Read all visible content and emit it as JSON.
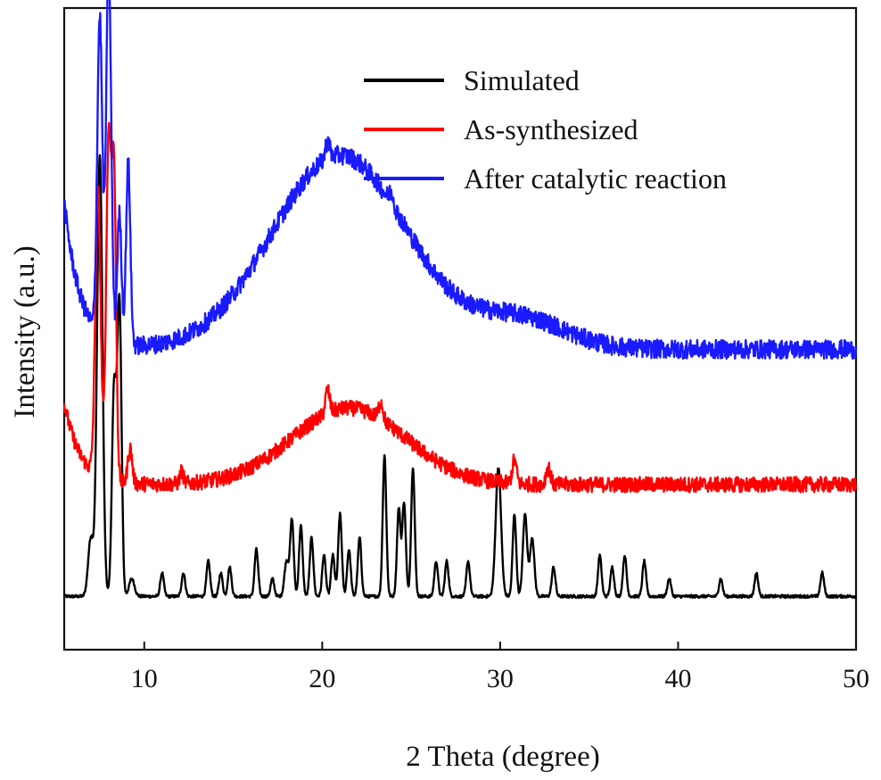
{
  "chart_data": {
    "type": "line",
    "title": "",
    "xlabel": "2 Theta (degree)",
    "ylabel": "Intensity (a.u.)",
    "xlim": [
      5.5,
      50
    ],
    "ylim": [
      0,
      100
    ],
    "xticks": [
      10,
      20,
      30,
      40,
      50
    ],
    "xtick_labels": [
      "10",
      "20",
      "30",
      "40",
      "50"
    ],
    "y_ticks_shown": false,
    "legend_position": "top-right",
    "series": [
      {
        "name": "Simulated",
        "color": "#000000",
        "baseline": 3,
        "peaks": [
          [
            7.0,
            10,
            0.15
          ],
          [
            7.5,
            75,
            0.15
          ],
          [
            8.3,
            35,
            0.12
          ],
          [
            8.6,
            50,
            0.12
          ],
          [
            9.3,
            3,
            0.15
          ],
          [
            11.0,
            4,
            0.1
          ],
          [
            12.2,
            4,
            0.1
          ],
          [
            13.6,
            6,
            0.1
          ],
          [
            14.3,
            4,
            0.1
          ],
          [
            14.8,
            5,
            0.1
          ],
          [
            16.3,
            8,
            0.1
          ],
          [
            17.2,
            3,
            0.1
          ],
          [
            18.0,
            6,
            0.12
          ],
          [
            18.3,
            13,
            0.1
          ],
          [
            18.8,
            12,
            0.1
          ],
          [
            19.4,
            10,
            0.1
          ],
          [
            20.1,
            7,
            0.1
          ],
          [
            20.6,
            7,
            0.1
          ],
          [
            21.0,
            14,
            0.1
          ],
          [
            21.5,
            8,
            0.1
          ],
          [
            22.1,
            10,
            0.1
          ],
          [
            23.5,
            24,
            0.1
          ],
          [
            24.3,
            15,
            0.1
          ],
          [
            24.6,
            16,
            0.1
          ],
          [
            25.1,
            22,
            0.1
          ],
          [
            26.4,
            6,
            0.1
          ],
          [
            27.0,
            6,
            0.1
          ],
          [
            28.2,
            6,
            0.1
          ],
          [
            29.9,
            22,
            0.15
          ],
          [
            30.8,
            14,
            0.1
          ],
          [
            31.4,
            14,
            0.12
          ],
          [
            31.8,
            10,
            0.12
          ],
          [
            33.0,
            5,
            0.1
          ],
          [
            35.6,
            7,
            0.1
          ],
          [
            36.3,
            5,
            0.1
          ],
          [
            37.0,
            7,
            0.1
          ],
          [
            38.1,
            6,
            0.1
          ],
          [
            39.5,
            3,
            0.1
          ],
          [
            42.4,
            3,
            0.1
          ],
          [
            44.4,
            4,
            0.1
          ],
          [
            48.1,
            4,
            0.1
          ]
        ]
      },
      {
        "name": "As-synthesized",
        "color": "#ff0000",
        "baseline": 22,
        "start_level": 36,
        "hump": [
          21.5,
          13,
          3.2
        ],
        "peaks": [
          [
            7.4,
            48,
            0.15
          ],
          [
            8.0,
            58,
            0.14
          ],
          [
            8.3,
            50,
            0.12
          ],
          [
            9.2,
            6,
            0.12
          ],
          [
            12.1,
            2,
            0.1
          ],
          [
            20.3,
            4,
            0.12
          ],
          [
            23.3,
            3,
            0.12
          ],
          [
            30.8,
            4,
            0.12
          ],
          [
            32.7,
            3,
            0.12
          ]
        ]
      },
      {
        "name": "After catalytic reaction",
        "color": "#1a1aff",
        "baseline": 45,
        "start_level": 70,
        "hump": [
          21.0,
          33,
          3.8
        ],
        "shoulder": [
          31.2,
          5,
          2.5
        ],
        "peaks": [
          [
            7.5,
            54,
            0.14
          ],
          [
            8.0,
            64,
            0.14
          ],
          [
            8.6,
            22,
            0.12
          ],
          [
            9.1,
            31,
            0.12
          ],
          [
            20.3,
            3,
            0.12
          ],
          [
            23.9,
            2,
            0.12
          ]
        ]
      }
    ]
  }
}
